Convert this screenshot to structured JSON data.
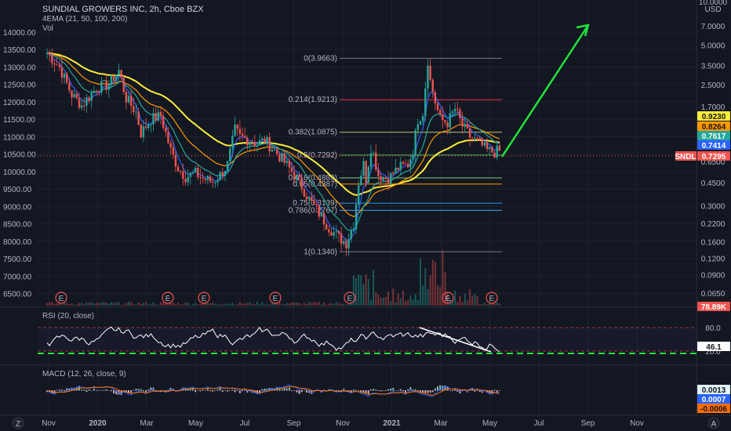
{
  "header": {
    "title": "SUNDIAL GROWERS INC, 2h, Cboe BZX",
    "indicator": "4EMA (21, 50, 100, 200)",
    "vol": "Vol"
  },
  "colors": {
    "background": "#131722",
    "up": "#26a69a",
    "down": "#ef5350",
    "ema21": "#2962ff",
    "ema50": "#26a69a",
    "ema100": "#ff9800",
    "ema200": "#ffeb3b",
    "arrow": "#22e33b",
    "rsi": "#ffffff",
    "rsi_support": "#22e33b",
    "macd": "#2962ff",
    "signal": "#ff6d00"
  },
  "chart_data": [
    {
      "type": "line",
      "title": "SUNDIAL GROWERS INC, 2h, Cboe BZX",
      "subtitle": "4EMA (21, 50, 100, 200)",
      "left_axis_ticks": [
        "14000.00",
        "13500.00",
        "13000.00",
        "12500.00",
        "12000.00",
        "11500.00",
        "11000.00",
        "10500.00",
        "10000.00",
        "9500.00",
        "9000.00",
        "8500.00",
        "8000.00",
        "7500.00",
        "7000.00",
        "6500.00"
      ],
      "right_axis_unit": "USD",
      "right_axis_top": "10.0000",
      "right_axis_scale": "log",
      "right_axis_ticks": [
        "7.0000",
        "5.0000",
        "3.5000",
        "2.5000",
        "1.7000",
        "1.2000",
        "0.6500",
        "0.4500",
        "0.3000",
        "0.2200",
        "0.1600",
        "0.1200",
        "0.0900",
        "0.0650"
      ],
      "x_ticks": [
        "Nov",
        "2020",
        "Mar",
        "May",
        "Jul",
        "Sep",
        "Nov",
        "2021",
        "Mar",
        "May",
        "Jul",
        "Sep",
        "Nov"
      ],
      "price_path": [
        [
          0,
          13.4
        ],
        [
          5,
          13.0
        ],
        [
          10,
          12.2
        ],
        [
          14,
          11.9
        ],
        [
          20,
          12.4
        ],
        [
          25,
          12.5
        ],
        [
          29,
          12.9
        ],
        [
          32,
          12.1
        ],
        [
          36,
          11.7
        ],
        [
          38,
          11.1
        ],
        [
          42,
          11.5
        ],
        [
          46,
          11.6
        ],
        [
          50,
          10.6
        ],
        [
          53,
          10.1
        ],
        [
          56,
          9.85
        ],
        [
          60,
          9.95
        ],
        [
          63,
          9.8
        ],
        [
          67,
          9.7
        ],
        [
          70,
          9.9
        ],
        [
          73,
          10.2
        ],
        [
          76,
          11.2
        ],
        [
          78,
          11.0
        ],
        [
          82,
          10.9
        ],
        [
          85,
          10.8
        ],
        [
          88,
          10.9
        ],
        [
          92,
          10.6
        ],
        [
          95,
          10.35
        ],
        [
          99,
          10.0
        ],
        [
          102,
          9.7
        ],
        [
          106,
          9.2
        ],
        [
          110,
          8.8
        ],
        [
          114,
          8.4
        ],
        [
          118,
          8.1
        ],
        [
          121,
          7.95
        ],
        [
          124,
          8.5
        ],
        [
          126,
          9.7
        ],
        [
          128,
          10.2
        ],
        [
          129,
          9.8
        ],
        [
          131,
          10.7
        ],
        [
          132,
          10.5
        ],
        [
          134,
          9.9
        ],
        [
          138,
          9.8
        ],
        [
          142,
          10.1
        ],
        [
          146,
          10.2
        ],
        [
          148,
          10.6
        ],
        [
          150,
          11.5
        ],
        [
          152,
          11.7
        ],
        [
          154,
          13.2
        ],
        [
          155,
          12.6
        ],
        [
          157,
          12.0
        ],
        [
          159,
          11.5
        ],
        [
          162,
          11.4
        ],
        [
          165,
          11.8
        ],
        [
          168,
          11.3
        ],
        [
          171,
          11.0
        ],
        [
          175,
          10.8
        ],
        [
          178,
          10.6
        ],
        [
          181,
          10.55
        ],
        [
          183,
          10.6
        ]
      ],
      "ema_series": [
        {
          "name": "EMA 200",
          "period": 200
        },
        {
          "name": "EMA 100",
          "period": 100
        },
        {
          "name": "EMA 50",
          "period": 50
        },
        {
          "name": "EMA 21",
          "period": 21
        }
      ],
      "fibonacci": [
        {
          "label": "0(3.9663)",
          "price": 3.9663,
          "color": "#787b86"
        },
        {
          "label": "0.214(1.9213)",
          "price": 1.9213,
          "color": "#f23645"
        },
        {
          "label": "0.382(1.0875)",
          "price": 1.0875,
          "color": "#c6c674"
        },
        {
          "label": "0.5(0.7292)",
          "price": 0.7292,
          "color": "#4caf50"
        },
        {
          "label": "0.618(0.4889)",
          "price": 0.4889,
          "color": "#81c784"
        },
        {
          "label": "0.65(0.4387)",
          "price": 0.4387,
          "color": "#ff9800"
        },
        {
          "label": "0.75(0.3139)",
          "price": 0.3139,
          "color": "#2196f3"
        },
        {
          "label": "0.786(0.2767)",
          "price": 0.2767,
          "color": "#42a5f5"
        },
        {
          "label": "1(0.1340)",
          "price": 0.134,
          "color": "#787b86"
        }
      ],
      "price_tags": [
        {
          "value": "0.9230",
          "color": "#ffeb3b",
          "text_color": "#131722"
        },
        {
          "value": "0.8264",
          "color": "#ff9800",
          "text_color": "#131722"
        },
        {
          "value": "0.7617",
          "color": "#26a69a",
          "text_color": "#ffffff"
        },
        {
          "value": "0.7414",
          "color": "#2962ff",
          "text_color": "#ffffff"
        },
        {
          "value": "0.7295",
          "color": "#ef5350",
          "text_color": "#ffffff",
          "symbol": "SNDL"
        },
        {
          "value": "78.89K",
          "color": "#ef5350",
          "text_color": "#ffffff"
        }
      ],
      "earnings_markers": [
        "E",
        "E",
        "E",
        "E",
        "E",
        "E",
        "E"
      ],
      "forecast_arrow": {
        "from": [
          183,
          10.55
        ],
        "to": [
          207,
          13.1
        ]
      }
    },
    {
      "type": "line",
      "title": "RSI (20, close)",
      "ylim": [
        0,
        100
      ],
      "level_ticks": [
        "80.0",
        "20.0"
      ],
      "current": "46.1",
      "trendline": {
        "from": [
          155,
          80
        ],
        "to": [
          183,
          18
        ]
      },
      "support": 14
    },
    {
      "type": "bar",
      "title": "MACD (12, 26, close, 9)",
      "values": {
        "histogram": "0.0013",
        "macd": "0.0007",
        "signal": "-0.0006"
      }
    }
  ]
}
